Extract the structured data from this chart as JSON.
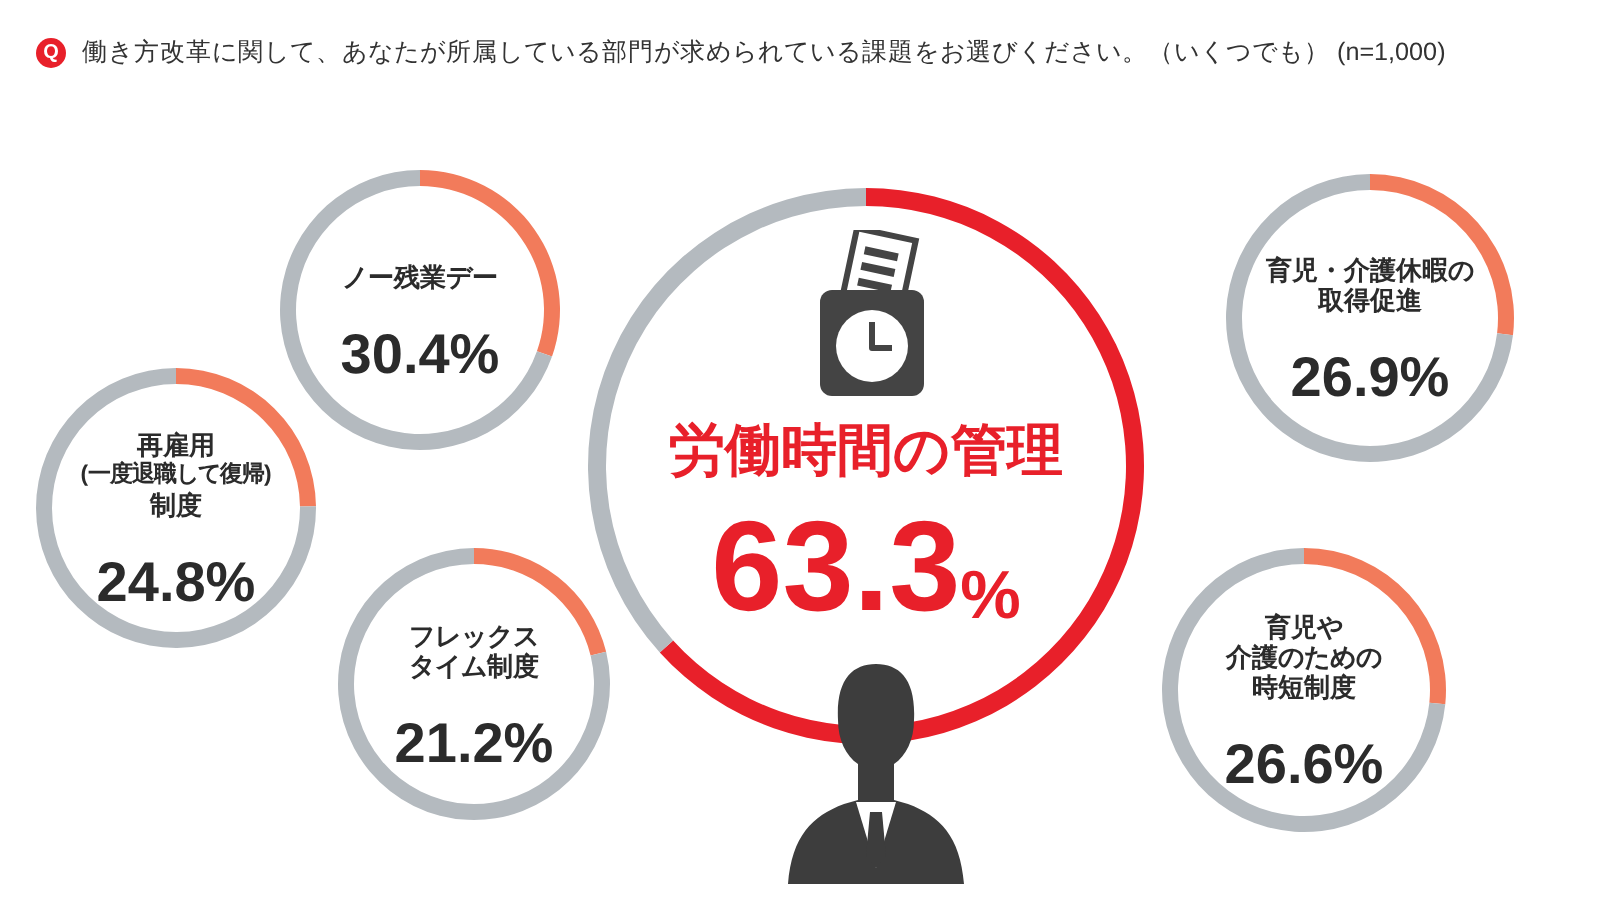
{
  "chart_data": [
    {
      "type": "donut",
      "title": "働き方改革に関して、あなたが所属している部門が求められている課題をお選びください。（いくつでも） (n=1,000)",
      "annotations": [
        "Q"
      ],
      "categories": [
        "ノー残業デー",
        null
      ],
      "values": [
        30.4,
        69.6
      ],
      "colors": [
        "#f27b5b",
        "#b4babf"
      ],
      "value_labels": [
        "30.4%",
        null
      ]
    },
    {
      "type": "donut",
      "categories": [
        "再雇用(一度退職して復帰)制度",
        null
      ],
      "values": [
        24.8,
        75.2
      ],
      "colors": [
        "#f27b5b",
        "#b4babf"
      ],
      "value_labels": [
        "24.8%",
        null
      ]
    },
    {
      "type": "donut",
      "categories": [
        "フレックスタイム制度",
        null
      ],
      "values": [
        21.2,
        78.8
      ],
      "colors": [
        "#f27b5b",
        "#b4babf"
      ],
      "value_labels": [
        "21.2%",
        null
      ]
    },
    {
      "type": "donut",
      "categories": [
        "労働時間の管理",
        null
      ],
      "values": [
        63.3,
        36.7
      ],
      "colors": [
        "#e8202a",
        "#b4babf"
      ],
      "value_labels": [
        "63.3%",
        null
      ]
    },
    {
      "type": "donut",
      "categories": [
        "育児・介護休暇の取得促進",
        null
      ],
      "values": [
        26.9,
        73.1
      ],
      "colors": [
        "#f27b5b",
        "#b4babf"
      ],
      "value_labels": [
        "26.9%",
        null
      ]
    },
    {
      "type": "donut",
      "categories": [
        "育児や介護のための時短制度",
        null
      ],
      "values": [
        26.6,
        73.4
      ],
      "colors": [
        "#f27b5b",
        "#b4babf"
      ],
      "value_labels": [
        "26.6%",
        null
      ]
    }
  ]
}
